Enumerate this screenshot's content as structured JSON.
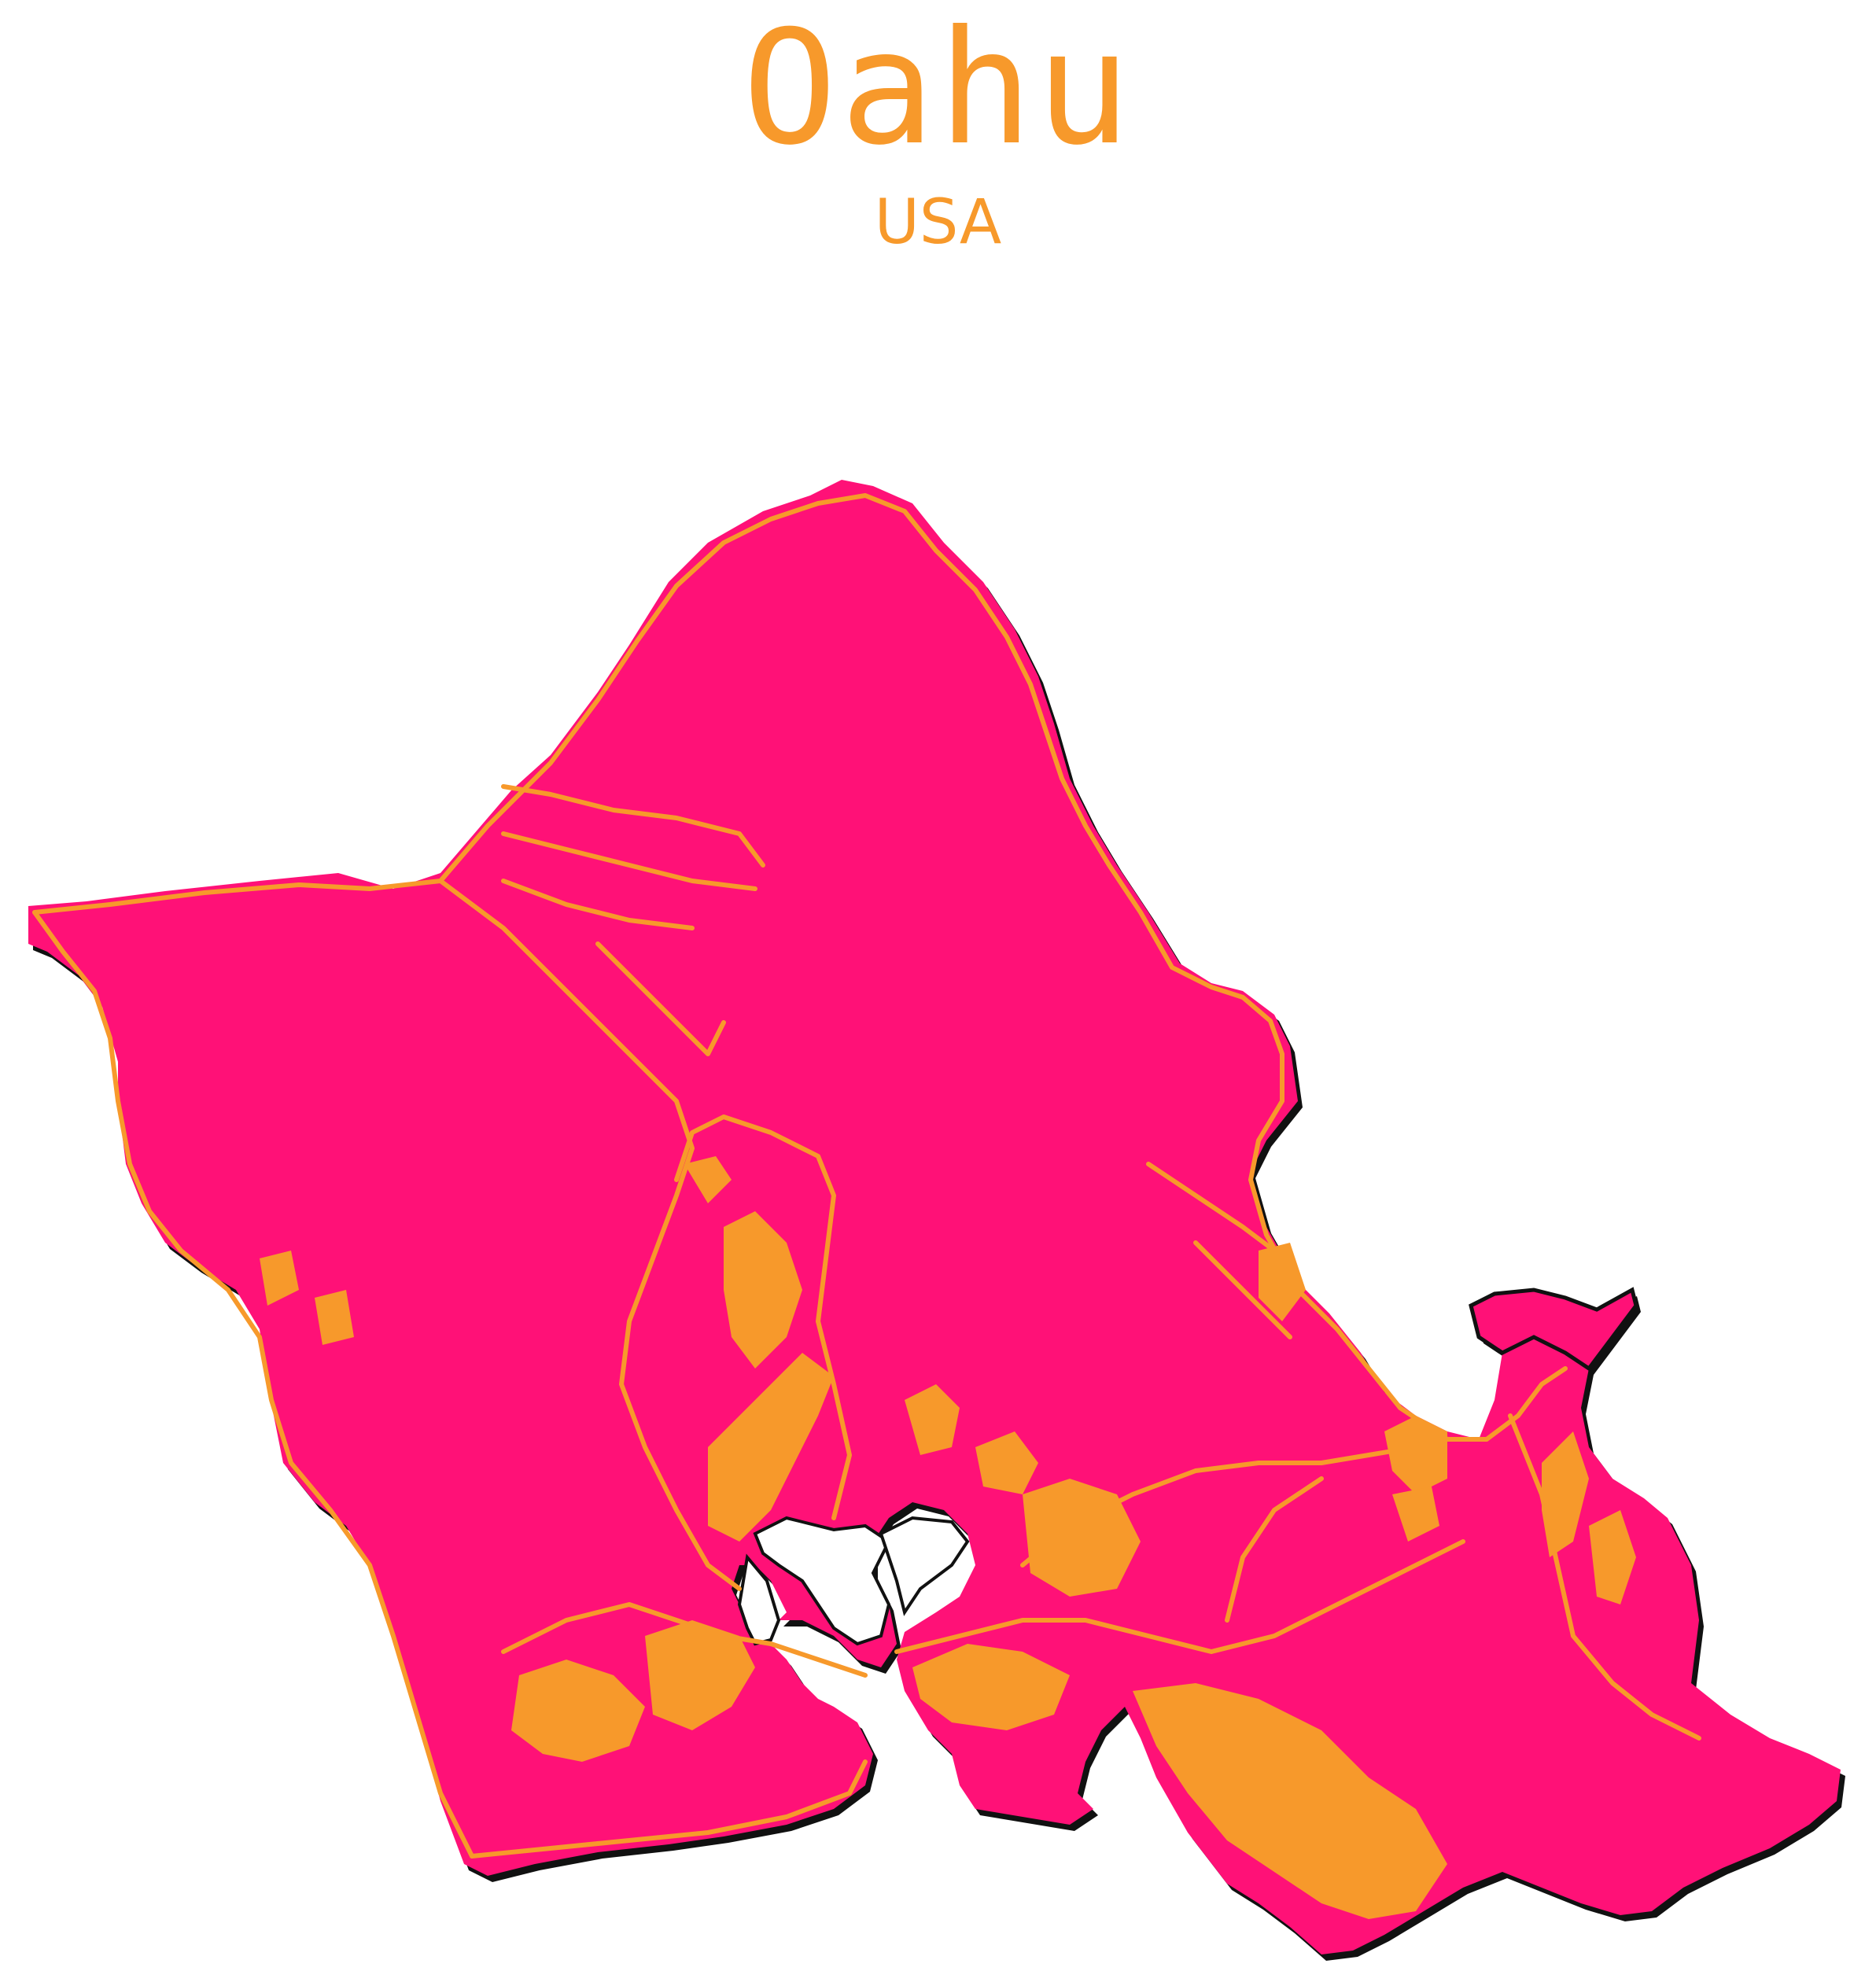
{
  "title": "Oahu",
  "subtitle": "USA",
  "colors": {
    "background": "#ffffff",
    "land": "#ff1177",
    "roads": "#f7992b",
    "coastline": "#111111",
    "title": "#f7992b"
  }
}
